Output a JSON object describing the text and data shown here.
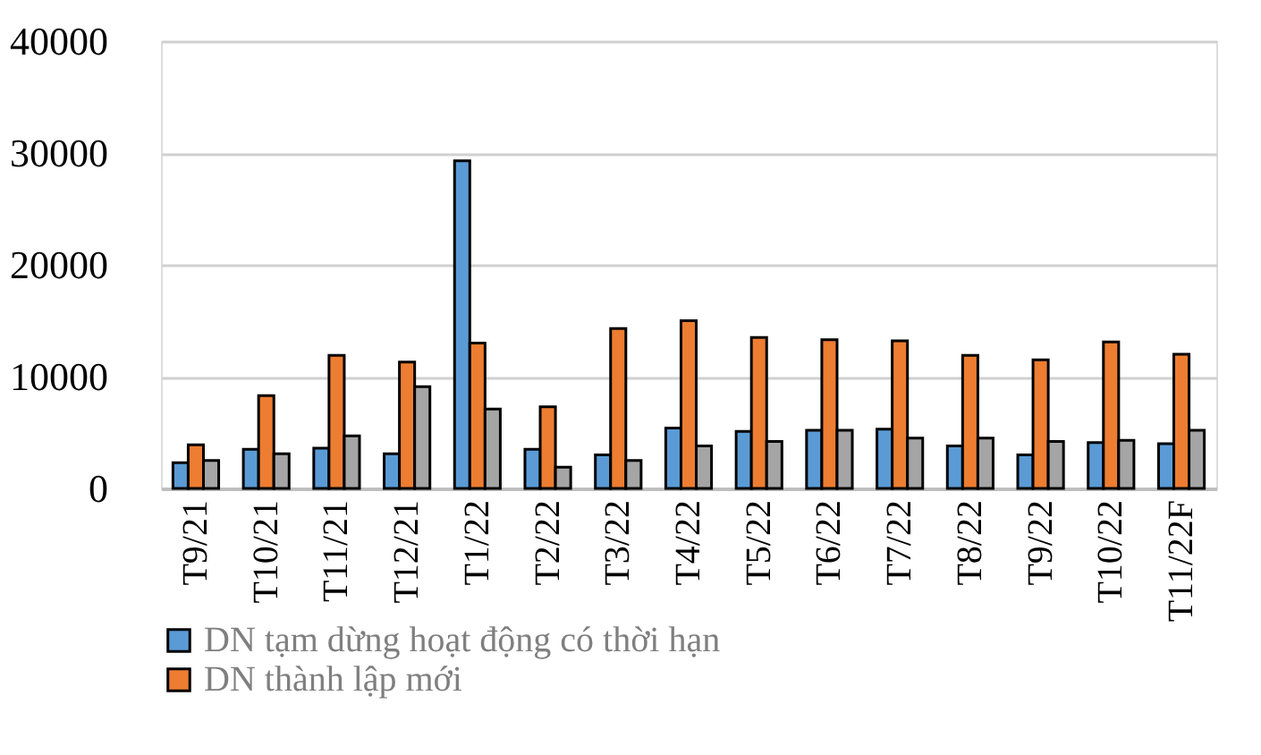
{
  "chart_data": {
    "type": "bar",
    "categories": [
      "T9/21",
      "T10/21",
      "T11/21",
      "T12/21",
      "T1/22",
      "T2/22",
      "T3/22",
      "T4/22",
      "T5/22",
      "T6/22",
      "T7/22",
      "T8/22",
      "T9/22",
      "T10/22",
      "T11/22F"
    ],
    "series": [
      {
        "name": "DN tạm dừng hoạt động có thời hạn",
        "color": "#5b9bd5",
        "values": [
          2300,
          3500,
          3600,
          3100,
          29300,
          3500,
          3000,
          5400,
          5100,
          5200,
          5300,
          3800,
          3000,
          4100,
          4000
        ]
      },
      {
        "name": "DN thành lập mới",
        "color": "#ed7d31",
        "values": [
          3900,
          8300,
          11900,
          11300,
          13000,
          7300,
          14300,
          15000,
          13500,
          13300,
          13200,
          11900,
          11500,
          13100,
          12000
        ]
      },
      {
        "color": "#a5a5a5",
        "values": [
          2500,
          3100,
          4700,
          9100,
          7100,
          1900,
          2500,
          3800,
          4200,
          5200,
          4500,
          4500,
          4200,
          4300,
          5200
        ]
      }
    ],
    "ylim": [
      0,
      40000
    ],
    "yticks": [
      0,
      10000,
      20000,
      30000,
      40000
    ],
    "grid": "y",
    "legend": "bottom"
  }
}
